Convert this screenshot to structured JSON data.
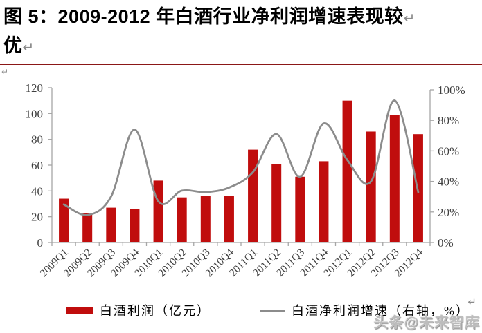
{
  "title": {
    "figure_label": "图 5：",
    "line1": "2009-2012 年白酒行业净利润增速表现较",
    "line2": "优"
  },
  "marks": {
    "line_break": "↵",
    "paragraph": "↵"
  },
  "legend": {
    "bar_label": "白酒利润（亿元）",
    "line_label": "白酒净利润增速（右轴，%）"
  },
  "watermark": "头条@未来智库",
  "colors": {
    "bar": "#c00d0d",
    "line": "#8c8c8c",
    "axis": "#a6a6a6",
    "tick_text": "#3f3f3f",
    "divider": "#8b1717"
  },
  "chart_data": {
    "type": "combo-bar-line",
    "title": "2009-2012 年白酒行业净利润增速表现较优",
    "categories": [
      "2009Q1",
      "2009Q2",
      "2009Q3",
      "2009Q4",
      "2010Q1",
      "2010Q2",
      "2010Q3",
      "2010Q4",
      "2011Q1",
      "2011Q2",
      "2011Q3",
      "2011Q4",
      "2012Q1",
      "2012Q2",
      "2012Q3",
      "2012Q4"
    ],
    "series": [
      {
        "name": "白酒利润（亿元）",
        "type": "bar",
        "axis": "left",
        "color": "#c00d0d",
        "values": [
          34,
          23,
          27,
          26,
          48,
          35,
          36,
          36,
          72,
          61,
          51,
          63,
          110,
          86,
          99,
          84
        ]
      },
      {
        "name": "白酒净利润增速（右轴，%）",
        "type": "line",
        "axis": "right",
        "color": "#8c8c8c",
        "values": [
          25,
          18,
          30,
          74,
          27,
          34,
          33,
          36,
          46,
          71,
          43,
          78,
          54,
          40,
          93,
          33
        ]
      }
    ],
    "left_axis": {
      "min": 0,
      "max": 120,
      "tick_step": 20,
      "ticks": [
        "0",
        "20",
        "40",
        "60",
        "80",
        "100",
        "120"
      ]
    },
    "right_axis": {
      "min": 0,
      "max": 100,
      "tick_step": 20,
      "ticks": [
        "0%",
        "20%",
        "40%",
        "60%",
        "80%",
        "100%"
      ]
    },
    "grid": false,
    "legend_position": "bottom",
    "x_label_rotation": -45
  }
}
